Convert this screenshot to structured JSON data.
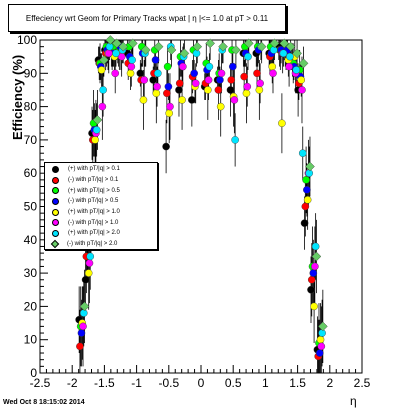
{
  "title": "Effeciency wrt Geom for Primary Tracks wpat | η |<= 1.0 at pT > 0.11",
  "xlabel": "η",
  "ylabel": "Efficiency (%)",
  "timestamp": "Wed Oct  8 18:15:02 2014",
  "chart_data": {
    "type": "scatter",
    "title": "Effeciency wrt Geom for Primary Tracks wpat | η |<= 1.0 at pT > 0.11",
    "xlabel": "η",
    "ylabel": "Efficiency (%)",
    "xlim": [
      -2.5,
      2.5
    ],
    "ylim": [
      0,
      100
    ],
    "xticks": [
      "-2.5",
      "-2",
      "-1.5",
      "-1",
      "-0.5",
      "0",
      "0.5",
      "1",
      "1.5",
      "2",
      "2.5"
    ],
    "yticks": [
      "0",
      "10",
      "20",
      "30",
      "40",
      "50",
      "60",
      "70",
      "80",
      "90",
      "100"
    ],
    "grid": false,
    "legend_position": "middle-left",
    "series": [
      {
        "name": "(+) with pT/|q| > 0.1",
        "color": "#000000",
        "marker": "circle",
        "x": [
          -1.85,
          -1.75,
          -1.65,
          -1.55,
          -1.45,
          -1.35,
          -1.25,
          -1.1,
          -0.9,
          -0.7,
          -0.5,
          -0.3,
          -0.1,
          0.1,
          0.3,
          0.5,
          0.7,
          0.9,
          1.1,
          1.25,
          1.35,
          1.45,
          1.55,
          1.65,
          1.75,
          1.85
        ],
        "y": [
          16,
          28,
          72,
          94,
          97,
          96,
          97,
          96,
          90,
          88,
          68,
          85,
          82,
          86,
          88,
          85,
          96,
          96,
          96,
          98,
          96,
          95,
          85,
          45,
          25,
          7
        ]
      },
      {
        "name": "(-) with pT/|q| > 0.1",
        "color": "#ff0000",
        "marker": "circle",
        "x": [
          -1.85,
          -1.75,
          -1.65,
          -1.55,
          -1.45,
          -1.35,
          -1.25,
          -1.1,
          -0.9,
          -0.7,
          -0.5,
          -0.3,
          -0.1,
          0.1,
          0.3,
          0.5,
          0.7,
          0.9,
          1.1,
          1.25,
          1.35,
          1.45,
          1.55,
          1.65,
          1.75,
          1.85
        ],
        "y": [
          8,
          35,
          70,
          93,
          96,
          96,
          97,
          93,
          88,
          90,
          84,
          87,
          89,
          87,
          85,
          88,
          89,
          90,
          95,
          97,
          96,
          94,
          87,
          50,
          28,
          5
        ]
      },
      {
        "name": "(+) with pT/|q| > 0.5",
        "color": "#00ff00",
        "marker": "circle",
        "x": [
          -1.85,
          -1.75,
          -1.65,
          -1.55,
          -1.45,
          -1.35,
          -1.25,
          -1.1,
          -0.9,
          -0.7,
          -0.5,
          -0.3,
          -0.1,
          0.1,
          0.3,
          0.5,
          0.7,
          0.9,
          1.1,
          1.25,
          1.35,
          1.45,
          1.55,
          1.65,
          1.75,
          1.85
        ],
        "y": [
          14,
          40,
          75,
          93,
          98,
          98,
          97,
          98,
          98,
          97,
          92,
          95,
          97,
          93,
          90,
          97,
          98,
          98,
          98,
          97,
          98,
          93,
          91,
          58,
          32,
          9
        ]
      },
      {
        "name": "(-) with pT/|q| > 0.5",
        "color": "#0000ff",
        "marker": "circle",
        "x": [
          -1.85,
          -1.75,
          -1.65,
          -1.55,
          -1.45,
          -1.35,
          -1.25,
          -1.1,
          -0.9,
          -0.7,
          -0.5,
          -0.3,
          -0.1,
          0.1,
          0.3,
          0.5,
          0.7,
          0.9,
          1.1,
          1.25,
          1.35,
          1.45,
          1.55,
          1.65,
          1.75,
          1.85
        ],
        "y": [
          12,
          38,
          73,
          92,
          97,
          96,
          98,
          95,
          96,
          94,
          86,
          93,
          90,
          91,
          88,
          92,
          96,
          97,
          96,
          97,
          97,
          92,
          89,
          55,
          30,
          6
        ]
      },
      {
        "name": "(+) with pT/|q| > 1.0",
        "color": "#ffff00",
        "marker": "circle",
        "x": [
          -1.85,
          -1.75,
          -1.65,
          -1.55,
          -1.45,
          -1.35,
          -1.25,
          -1.1,
          -0.9,
          -0.7,
          -0.5,
          -0.3,
          -0.1,
          0.1,
          0.3,
          0.5,
          0.7,
          0.9,
          1.1,
          1.25,
          1.35,
          1.45,
          1.55,
          1.65,
          1.75,
          1.85
        ],
        "y": [
          15,
          30,
          70,
          91,
          96,
          95,
          96,
          90,
          82,
          84,
          78,
          82,
          86,
          85,
          80,
          83,
          84,
          85,
          92,
          75,
          94,
          95,
          88,
          52,
          20,
          10
        ]
      },
      {
        "name": "(-) with pT/|q| > 1.0",
        "color": "#ff00ff",
        "marker": "circle",
        "x": [
          -1.85,
          -1.75,
          -1.65,
          -1.55,
          -1.45,
          -1.35,
          -1.25,
          -1.1,
          -0.9,
          -0.7,
          -0.5,
          -0.3,
          -0.1,
          0.1,
          0.3,
          0.5,
          0.7,
          0.9,
          1.1,
          1.25,
          1.35,
          1.45,
          1.55,
          1.65,
          1.75,
          1.85
        ],
        "y": [
          14,
          33,
          72,
          80,
          96,
          90,
          95,
          92,
          88,
          86,
          80,
          92,
          87,
          88,
          90,
          82,
          86,
          87,
          90,
          96,
          92,
          90,
          85,
          60,
          32,
          8
        ]
      },
      {
        "name": "(+) with pT/|q| > 2.0",
        "color": "#00e5ff",
        "marker": "circle",
        "x": [
          -1.85,
          -1.75,
          -1.65,
          -1.55,
          -1.45,
          -1.35,
          -1.25,
          -1.1,
          -0.9,
          -0.7,
          -0.5,
          -0.3,
          -0.1,
          0.1,
          0.3,
          0.5,
          0.7,
          0.9,
          1.1,
          1.25,
          1.35,
          1.45,
          1.55,
          1.65,
          1.75,
          1.85
        ],
        "y": [
          18,
          35,
          73,
          85,
          98,
          96,
          97,
          94,
          96,
          90,
          98,
          95,
          96,
          92,
          97,
          70,
          95,
          98,
          97,
          96,
          95,
          91,
          66,
          60,
          38,
          12
        ]
      },
      {
        "name": "(-) with pT/|q| > 2.0",
        "color": "#66cc66",
        "marker": "diamond",
        "x": [
          -1.85,
          -1.75,
          -1.65,
          -1.55,
          -1.45,
          -1.35,
          -1.25,
          -1.1,
          -0.9,
          -0.7,
          -0.5,
          -0.3,
          -0.1,
          0.1,
          0.3,
          0.5,
          0.7,
          0.9,
          1.1,
          1.25,
          1.35,
          1.45,
          1.55,
          1.65,
          1.75,
          1.85
        ],
        "y": [
          20,
          42,
          76,
          94,
          100,
          99,
          98,
          99,
          97,
          98,
          97,
          96,
          98,
          99,
          98,
          97,
          99,
          98,
          99,
          99,
          98,
          96,
          93,
          62,
          35,
          14
        ]
      }
    ]
  }
}
